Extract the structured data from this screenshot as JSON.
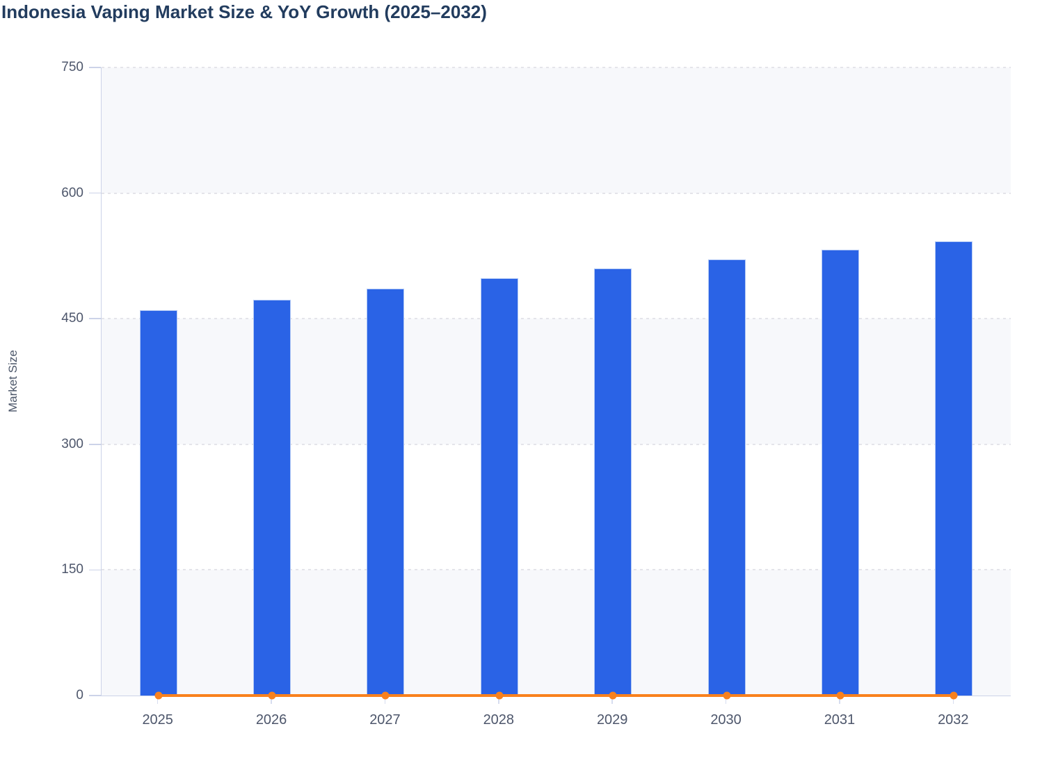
{
  "header": {
    "title": "Indonesia Vaping Market Size & YoY Growth (2025–2032)",
    "title_color": "#223c5e"
  },
  "chart_data": {
    "type": "bar",
    "title": "Indonesia Vaping Market Size & YoY Growth (2025–2032)",
    "categories": [
      "2025",
      "2026",
      "2027",
      "2028",
      "2029",
      "2030",
      "2031",
      "2032"
    ],
    "series": [
      {
        "name": "Market Size",
        "type": "bar",
        "color": "#2a63e6",
        "values": [
          460,
          473,
          486,
          498,
          510,
          521,
          532,
          542
        ]
      },
      {
        "name": "YoY Growth",
        "type": "line",
        "color": "#f9811d",
        "values": [
          0,
          0,
          0,
          0,
          0,
          0,
          0,
          0
        ]
      }
    ],
    "xlabel": "",
    "ylabel": "Market Size",
    "ylim": [
      0,
      750
    ],
    "yticks": [
      0,
      150,
      300,
      450,
      600,
      750
    ],
    "grid": "horizontal-dashed",
    "legend_position": "none",
    "split_area_colors": [
      "#f7f8fb",
      "#ffffff"
    ],
    "gridline_color": "#e4e4ea",
    "axis_line_color": "#ccd3e8",
    "tick_label_color": "#4d566b",
    "axis_title_color": "#4a5568"
  }
}
